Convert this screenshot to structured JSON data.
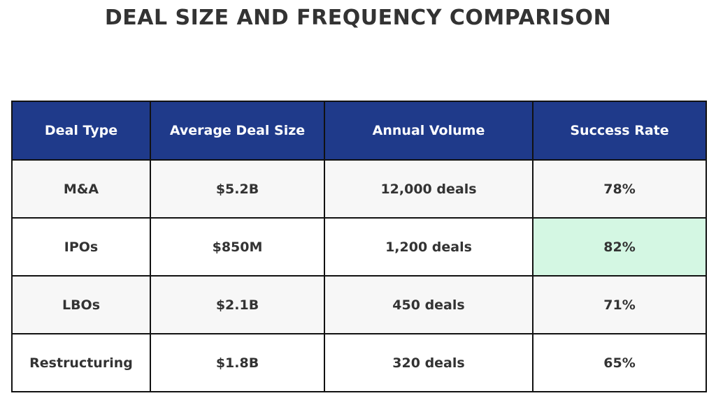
{
  "chart_data": {
    "type": "table",
    "title": "DEAL SIZE AND FREQUENCY COMPARISON",
    "columns": [
      "Deal Type",
      "Average Deal Size",
      "Annual Volume",
      "Success Rate"
    ],
    "rows": [
      [
        "M&A",
        "$5.2B",
        "12,000 deals",
        "78%"
      ],
      [
        "IPOs",
        "$850M",
        "1,200 deals",
        "82%"
      ],
      [
        "LBOs",
        "$2.1B",
        "450 deals",
        "71%"
      ],
      [
        "Restructuring",
        "$1.8B",
        "320 deals",
        "65%"
      ]
    ],
    "highlight": {
      "row": 1,
      "column": 3,
      "color": "#d4f7e3"
    },
    "header_color": "#1f3a8a"
  }
}
